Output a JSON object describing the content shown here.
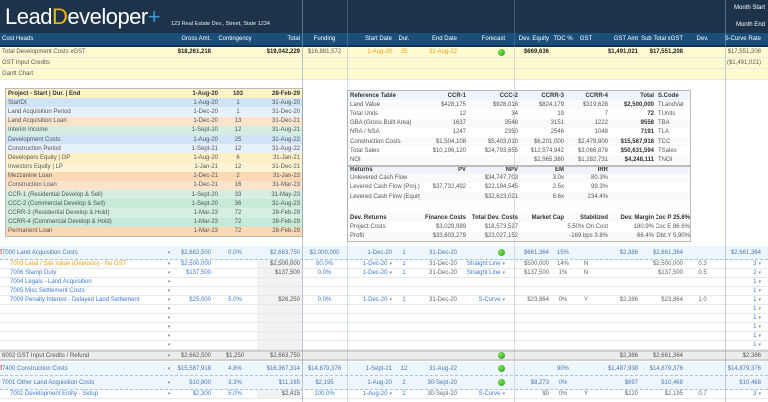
{
  "app": {
    "logo_text": "LeadDeveloper+",
    "address": "123 Real Estate Dev., Street, State 1234",
    "month_start": "Month Start",
    "month_end": "Month End"
  },
  "columns": {
    "name": "Cost Heads",
    "gross": "Gross Amt.",
    "cont": "Contingency",
    "total": "Total",
    "funding": "Funding",
    "start": "Start Date",
    "dur": "Dur.",
    "end": "End Date",
    "forecast": "Forecast",
    "equity": "Dev. Equity",
    "tdc": "TDC %",
    "gst": "GST",
    "gstamt": "GST Amt",
    "subtotal": "Sub Total xGST",
    "dev": "Dev.",
    "scurve": "S-Curve Rate"
  },
  "summary": [
    {
      "name": "Total Development Costs xGST",
      "gross": "$18,261,218",
      "total": "$19,042,229",
      "funding": "$16,881,572",
      "start": "1-Aug-20",
      "dur": "25",
      "end": "31-Aug-22",
      "forecast": "green",
      "equity": "$669,636",
      "gstamt": "$1,491,021",
      "subtotal": "$17,551,208",
      "scurve": "$17,551,208"
    },
    {
      "name": "GST Input Credits",
      "scurve": "($1,491,021)"
    },
    {
      "name": "Gantt Chart"
    }
  ],
  "gantt": {
    "header": [
      "Project - Start | Dur. | End",
      "1-Aug-20",
      "103",
      "28-Feb-29"
    ],
    "rows": [
      [
        "StartDt",
        "1-Aug-20",
        "1",
        "31-Aug-20"
      ],
      [
        "Land Acquisition Period",
        "1-Dec-20",
        "1",
        "31-Dec-20"
      ],
      [
        "Land Acquisition Loan",
        "1-Dec-20",
        "13",
        "31-Dec-21"
      ],
      [
        "Interim Income",
        "1-Sept-20",
        "12",
        "31-Aug-21"
      ],
      [
        "Development Costs",
        "1-Aug-20",
        "25",
        "31-Aug-22"
      ],
      [
        "Construction Period",
        "1-Sept-21",
        "12",
        "31-Aug-22"
      ],
      [
        "Developers Equity | GP",
        "1-Aug-20",
        "6",
        "31-Jan-21"
      ],
      [
        "Investors Equity | LP",
        "1-Jan-21",
        "12",
        "31-Dec-21"
      ],
      [
        "Mezzanine Loan",
        "1-Dec-21",
        "2",
        "31-Jan-22"
      ],
      [
        "Construction Loan",
        "1-Dec-21",
        "16",
        "31-Mar-23"
      ],
      [
        "CCR-1 (Residential Develop & Sell)",
        "1-Sept-20",
        "33",
        "31-May-23"
      ],
      [
        "CCC-2 (Commercial Develop & Sell)",
        "1-Sept-20",
        "36",
        "31-Aug-23"
      ],
      [
        "CCRR-3 (Residential Develop & Hold)",
        "1-Mar-23",
        "72",
        "28-Feb-29"
      ],
      [
        "CCRR-4 (Commercial Develop & Hold)",
        "1-Mar-23",
        "72",
        "28-Feb-29"
      ],
      [
        "Permanent Loan",
        "1-Mar-23",
        "72",
        "28-Feb-29"
      ]
    ],
    "colors": [
      "#cfe3f7",
      "#e6f1fb",
      "#fde2cc",
      "#d4efe0",
      "#cfe3f7",
      "#e6f1fb",
      "#fdf0c6",
      "#fdf4d6",
      "#fbd9b5",
      "#fde2cc",
      "#d4efe0",
      "#c6ead5",
      "#d4efe0",
      "#c6ead5",
      "#fbd9b5"
    ]
  },
  "reference": {
    "rows": [
      [
        "Reference Table",
        "CCR-1",
        "CCC-2",
        "CCRR-3",
        "CCRR-4",
        "Total",
        "S.Code"
      ],
      [
        "Land Value",
        "$428,175",
        "$928,018",
        "$824,179",
        "$319,628",
        "$2,500,000",
        "TLandVal"
      ],
      [
        "Total Units",
        "12",
        "34",
        "19",
        "7",
        "72",
        "TUnits"
      ],
      [
        "GBA (Gross Built Area)",
        "1637",
        "3548",
        "3151",
        "1222",
        "9558",
        "TBA"
      ],
      [
        "NRA / NSA",
        "1247",
        "2350",
        "2546",
        "1048",
        "7191",
        "TLA"
      ],
      [
        "Construction Costs",
        "$1,504,108",
        "$5,403,010",
        "$6,201,000",
        "$2,479,800",
        "$15,587,918",
        "TCC"
      ],
      [
        "Total Sales",
        "$10,196,120",
        "$24,793,655",
        "$12,574,942",
        "$3,066,878",
        "$50,631,594",
        "TSales"
      ],
      [
        "NOI",
        "",
        "",
        "$2,965,380",
        "$1,282,731",
        "$4,248,111",
        "TNOI"
      ],
      [
        "Returns",
        "PV",
        "NPV",
        "EM",
        "IRR",
        "",
        ""
      ],
      [
        "Unlevered Cash Flow",
        "",
        "$34,747,703",
        "3.0x",
        "80.3%",
        "",
        ""
      ],
      [
        "Levered Cash Flow (Proj.)",
        "$37,732,492",
        "$22,194,545",
        "2.5x",
        "99.3%",
        "",
        ""
      ],
      [
        "Levered Cash Flow (Equity)",
        "",
        "$32,623,021",
        "8.6x",
        "234.4%",
        "",
        ""
      ],
      [
        "",
        "",
        "",
        "",
        "",
        "",
        ""
      ],
      [
        "Dev. Returns",
        "Finance Costs",
        "Total Dev. Costs",
        "Market Cap",
        "Stabilized",
        "Dev. Margin",
        "Coc P 25.6%"
      ],
      [
        "Project Costs",
        "$3,029,989",
        "$18,573,527",
        "",
        "5.50% On Cost",
        "180.9%",
        "Coc E 86.6%"
      ],
      [
        "Profit",
        "$33,603,279",
        "$23,027,152",
        "",
        "-169 bps   3.8%",
        "66.4%",
        "Dbt.Y 5.90%"
      ]
    ]
  },
  "lines": [
    {
      "type": "group",
      "alert": true,
      "name": "7000 Land Acquisition Costs",
      "gross": "$2,662,500",
      "cont": "0.0%",
      "total": "$2,663,750",
      "funding": "$2,000,000",
      "start": "1-Dec-20",
      "dur": "1",
      "end": "31-Dec-20",
      "forecast": "green",
      "equity": "$661,364",
      "tdc": "15%",
      "gstamt": "$2,386",
      "subtotal": "$2,661,364",
      "scurve": "$2,661,364"
    },
    {
      "type": "sub",
      "color": "#f39c12",
      "name": "7003 Land / Site Value (Deposits) - No GST",
      "gross": "$2,500,000",
      "total": "$2,500,000",
      "funding": "80.0%",
      "start": "1-Dec-20",
      "dur": "1",
      "end": "31-Dec-20",
      "forecast": "Straight Line",
      "equity": "$500,000",
      "tdc": "14%",
      "gst": "N",
      "subtotal": "$2,500,000",
      "dev": "0.3",
      "scurve": "3"
    },
    {
      "type": "sub",
      "name": "7006 Stamp Duty",
      "gross": "$137,500",
      "total": "$137,500",
      "funding": "0.0%",
      "start": "1-Dec-20",
      "dur": "1",
      "end": "31-Dec-20",
      "forecast": "Straight Line",
      "equity": "$137,500",
      "tdc": "1%",
      "gst": "N",
      "subtotal": "$137,500",
      "dev": "0.5",
      "scurve": "2"
    },
    {
      "type": "sub",
      "name": "7004 Legals - Land Acquisition",
      "scurve": "1"
    },
    {
      "type": "sub",
      "name": "7005 Misc Settlement Costs",
      "scurve": "1"
    },
    {
      "type": "sub",
      "name": "7009 Penalty Interest - Delayed Land Settlement",
      "gross": "$25,000",
      "cont": "5.0%",
      "total": "$26,250",
      "funding": "0.0%",
      "start": "1-Dec-20",
      "dur": "1",
      "end": "31-Dec-20",
      "forecast": "S-Curve",
      "equity": "$23,864",
      "tdc": "0%",
      "gst": "Y",
      "gstamt": "$2,386",
      "subtotal": "$23,864",
      "dev": "1.0",
      "scurve": "1"
    },
    {
      "type": "sub",
      "name": "",
      "scurve": "1"
    },
    {
      "type": "sub",
      "name": "",
      "scurve": "1"
    },
    {
      "type": "sub",
      "name": "",
      "scurve": "1"
    },
    {
      "type": "sub",
      "name": "",
      "scurve": "1"
    },
    {
      "type": "sub",
      "name": "",
      "scurve": "1"
    },
    {
      "type": "gstrow",
      "name": "6002 GST Input Credits / Refund",
      "gross": "$2,662,500",
      "cont": "$1,250",
      "total": "$2,663,750",
      "forecast": "green",
      "gstamt": "$2,386",
      "subtotal": "$2,661,364",
      "scurve": "$2,386"
    },
    {
      "type": "group",
      "alert": true,
      "name": "7400 Construction Costs",
      "gross": "$15,587,918",
      "cont": "4.8%",
      "total": "$16,367,314",
      "funding": "$14,879,376",
      "start": "1-Sept-21",
      "dur": "12",
      "end": "31-Aug-22",
      "forecast": "green",
      "tdc": "90%",
      "gstamt": "$1,487,938",
      "subtotal": "$14,879,376",
      "scurve": "$14,879,376"
    },
    {
      "type": "group",
      "name": "7001 Other Land Acquisition Costs",
      "gross": "$10,800",
      "cont": "3.3%",
      "total": "$11,165",
      "funding": "$2,195",
      "start": "1-Aug-20",
      "dur": "2",
      "end": "30-Sept-20",
      "forecast": "green",
      "equity": "$8,273",
      "tdc": "0%",
      "gstamt": "$697",
      "subtotal": "$10,468",
      "scurve": "$10,468"
    },
    {
      "type": "sub",
      "name": "7002 Development Entity - Setup",
      "gross": "$2,300",
      "cont": "5.0%",
      "total": "$2,415",
      "funding": "100.0%",
      "start": "1-Aug-20",
      "dur": "2",
      "end": "30-Sept-20",
      "forecast": "S-Curve",
      "equity": "$0",
      "tdc": "0%",
      "gst": "Y",
      "gstamt": "$220",
      "subtotal": "$2,195",
      "dev": "0.7",
      "scurve": "3"
    }
  ],
  "colors": {
    "topbar": "#1c3349",
    "header": "#1a4f7a",
    "summary": "#fffbd1",
    "group": "#eef6fd",
    "accent_orange": "#f39c12",
    "link_blue": "#3f7bd9",
    "forecast_ok": "#22a811"
  }
}
